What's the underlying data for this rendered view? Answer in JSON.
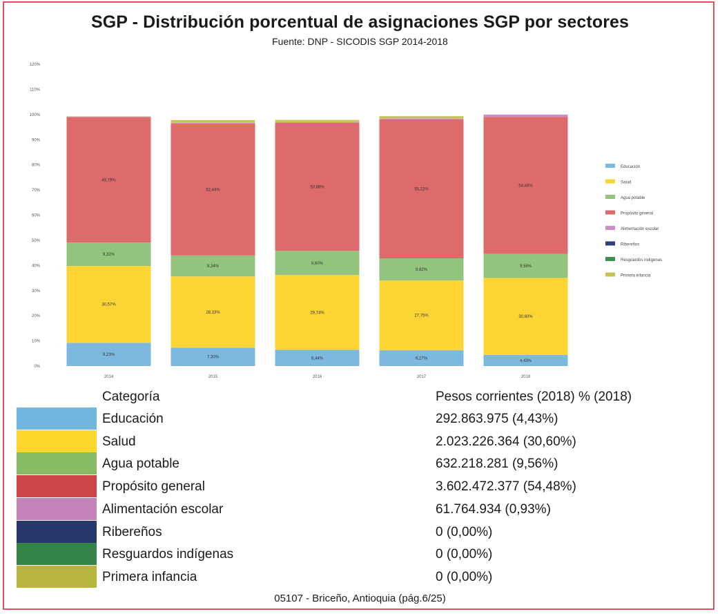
{
  "title": "SGP - Distribución porcentual de asignaciones SGP por sectores",
  "subtitle": "Fuente: DNP - SICODIS SGP 2014-2018",
  "chart_data": {
    "type": "bar",
    "stacked": true,
    "categories": [
      "2014",
      "2015",
      "2016",
      "2017",
      "2018"
    ],
    "yticks": [
      "0%",
      "10%",
      "20%",
      "30%",
      "40%",
      "50%",
      "60%",
      "70%",
      "80%",
      "90%",
      "100%",
      "110%",
      "120%"
    ],
    "ylim": [
      0,
      120
    ],
    "legend_position": "right",
    "series": [
      {
        "name": "Educación",
        "color": "#7db8df",
        "values": [
          9.23,
          7.3,
          6.44,
          6.27,
          4.43
        ],
        "labels": [
          "9,23%",
          "7,30%",
          "6,44%",
          "6,27%",
          "4,43%"
        ]
      },
      {
        "name": "Salud",
        "color": "#fcd535",
        "values": [
          30.57,
          28.33,
          29.74,
          27.75,
          30.6
        ],
        "labels": [
          "30,57%",
          "28,33%",
          "29,74%",
          "27,75%",
          "30,60%"
        ]
      },
      {
        "name": "Agua potable",
        "color": "#92c47d",
        "values": [
          9.32,
          8.34,
          9.6,
          8.82,
          9.56
        ],
        "labels": [
          "9,32%",
          "8,34%",
          "9,60%",
          "8,82%",
          "9,56%"
        ]
      },
      {
        "name": "Propósito general",
        "color": "#dd6b6b",
        "values": [
          49.79,
          52.44,
          50.88,
          55.22,
          54.48
        ],
        "labels": [
          "49,79%",
          "52,44%",
          "50,88%",
          "55,22%",
          "54,48%"
        ]
      },
      {
        "name": "Alimentación escolar",
        "color": "#cc8fc0",
        "values": [
          0.3,
          0.3,
          0.3,
          0.3,
          0.93
        ],
        "labels": [
          "",
          "",
          "",
          "",
          ""
        ]
      },
      {
        "name": "Ribereños",
        "color": "#2e3f7a",
        "values": [
          0,
          0,
          0,
          0,
          0
        ],
        "labels": [
          "",
          "",
          "",
          "",
          ""
        ]
      },
      {
        "name": "Resguardos indígenas",
        "color": "#3e8f4f",
        "values": [
          0,
          0,
          0,
          0,
          0
        ],
        "labels": [
          "",
          "",
          "",
          "",
          ""
        ]
      },
      {
        "name": "Primera infancia",
        "color": "#c7c455",
        "values": [
          0.1,
          1.1,
          0.9,
          1.0,
          0
        ],
        "labels": [
          "",
          "",
          "",
          "",
          ""
        ]
      }
    ]
  },
  "table": {
    "header_category": "Categoría",
    "header_values": "Pesos corrientes (2018)  % (2018)",
    "rows": [
      {
        "name": "Educación",
        "value": "292.863.975 (4,43%)",
        "color": "#72b7e0"
      },
      {
        "name": "Salud",
        "value": "2.023.226.364 (30,60%)",
        "color": "#fcd62a"
      },
      {
        "name": "Agua potable",
        "value": "632.218.281 (9,56%)",
        "color": "#85bb62"
      },
      {
        "name": "Propósito general",
        "value": "3.602.472.377 (54,48%)",
        "color": "#cc4548"
      },
      {
        "name": "Alimentación escolar",
        "value": "61.764.934 (0,93%)",
        "color": "#c584b9"
      },
      {
        "name": "Ribereños",
        "value": "0 (0,00%)",
        "color": "#26386a"
      },
      {
        "name": "Resguardos indígenas",
        "value": "0 (0,00%)",
        "color": "#338446"
      },
      {
        "name": "Primera infancia",
        "value": "0 (0,00%)",
        "color": "#b8b440"
      }
    ]
  },
  "footer": "05107 - Briceño, Antioquia (pág.6/25)"
}
